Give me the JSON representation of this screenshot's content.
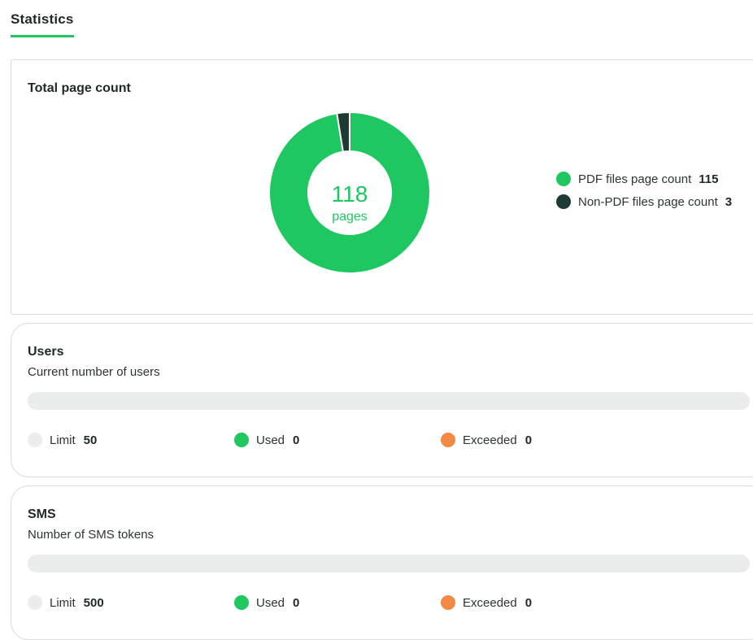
{
  "tabs": [
    {
      "label": "Statistics",
      "active": true
    }
  ],
  "page_count": {
    "title": "Total page count",
    "total": "118",
    "unit": "pages",
    "legend": [
      {
        "label": "PDF files page count",
        "value": "115",
        "color": "#1fc760"
      },
      {
        "label": "Non-PDF files page count",
        "value": "3",
        "color": "#1f3a33"
      }
    ]
  },
  "users": {
    "title": "Users",
    "subtitle": "Current number of users",
    "used_fraction": 0,
    "limit": {
      "label": "Limit",
      "value": "50",
      "color": "#ebecec"
    },
    "used": {
      "label": "Used",
      "value": "0",
      "color": "#1fc760"
    },
    "exceeded": {
      "label": "Exceeded",
      "value": "0",
      "color": "#f28a45"
    }
  },
  "sms": {
    "title": "SMS",
    "subtitle": "Number of SMS tokens",
    "used_fraction": 0,
    "limit": {
      "label": "Limit",
      "value": "500",
      "color": "#ebecec"
    },
    "used": {
      "label": "Used",
      "value": "0",
      "color": "#1fc760"
    },
    "exceeded": {
      "label": "Exceeded",
      "value": "0",
      "color": "#f28a45"
    }
  },
  "chart_data": {
    "type": "pie",
    "categories": [
      "PDF files page count",
      "Non-PDF files page count"
    ],
    "values": [
      115,
      3
    ],
    "title": "Total page count",
    "colors": [
      "#1fc760",
      "#1f3a33"
    ]
  }
}
